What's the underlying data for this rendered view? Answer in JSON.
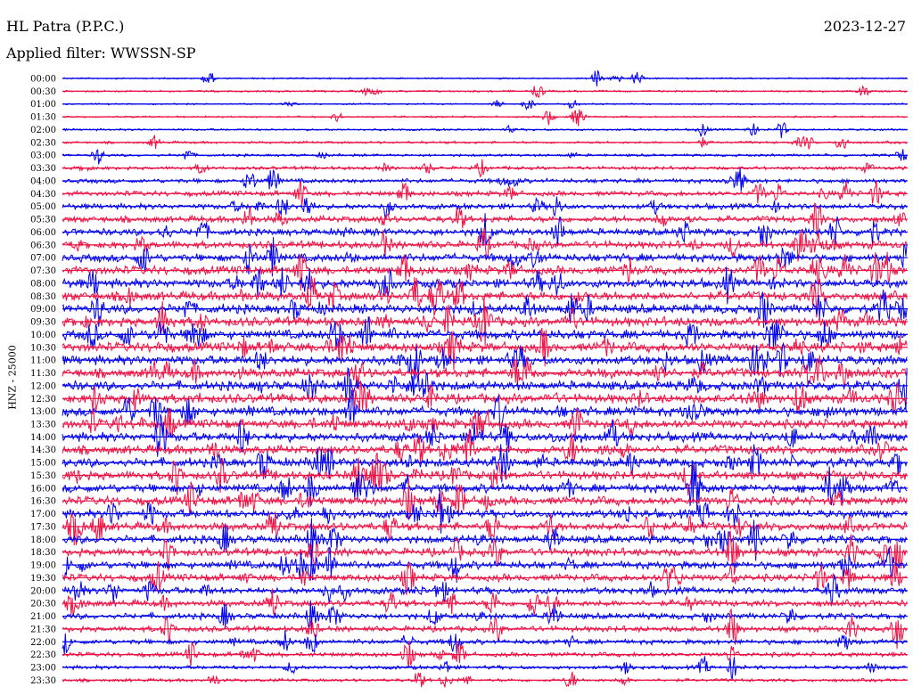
{
  "header": {
    "station": "HL Patra (P.P.C.)",
    "date": "2023-12-27",
    "filter": "Applied filter: WWSSN-SP",
    "channel": "HNZ - 25000"
  },
  "chart_data": {
    "type": "line",
    "title": "HL Patra (P.P.C.)",
    "xlabel": "",
    "ylabel": "HNZ - 25000",
    "colors": [
      "#0000ee",
      "#ee1144"
    ],
    "grid": false,
    "categories": [
      "00:00",
      "00:30",
      "01:00",
      "01:30",
      "02:00",
      "02:30",
      "03:00",
      "03:30",
      "04:00",
      "04:30",
      "05:00",
      "05:30",
      "06:00",
      "06:30",
      "07:00",
      "07:30",
      "08:00",
      "08:30",
      "09:00",
      "09:30",
      "10:00",
      "10:30",
      "11:00",
      "11:30",
      "12:00",
      "12:30",
      "13:00",
      "13:30",
      "14:00",
      "14:30",
      "15:00",
      "15:30",
      "16:00",
      "16:30",
      "17:00",
      "17:30",
      "18:00",
      "18:30",
      "19:00",
      "19:30",
      "20:00",
      "20:30",
      "21:00",
      "21:30",
      "22:00",
      "22:30",
      "23:00",
      "23:30"
    ],
    "noise_level": [
      0.8,
      1.0,
      0.8,
      0.9,
      1.1,
      1.3,
      1.4,
      1.8,
      2.3,
      2.7,
      3.0,
      3.4,
      3.7,
      4.0,
      4.3,
      4.6,
      4.8,
      4.9,
      5.0,
      5.0,
      5.1,
      5.1,
      5.0,
      5.0,
      5.0,
      5.0,
      4.9,
      4.9,
      4.8,
      4.8,
      4.8,
      4.7,
      4.6,
      4.6,
      4.5,
      4.4,
      4.3,
      4.2,
      4.1,
      3.9,
      3.7,
      3.5,
      3.2,
      3.0,
      2.7,
      2.4,
      2.0,
      1.7
    ]
  }
}
